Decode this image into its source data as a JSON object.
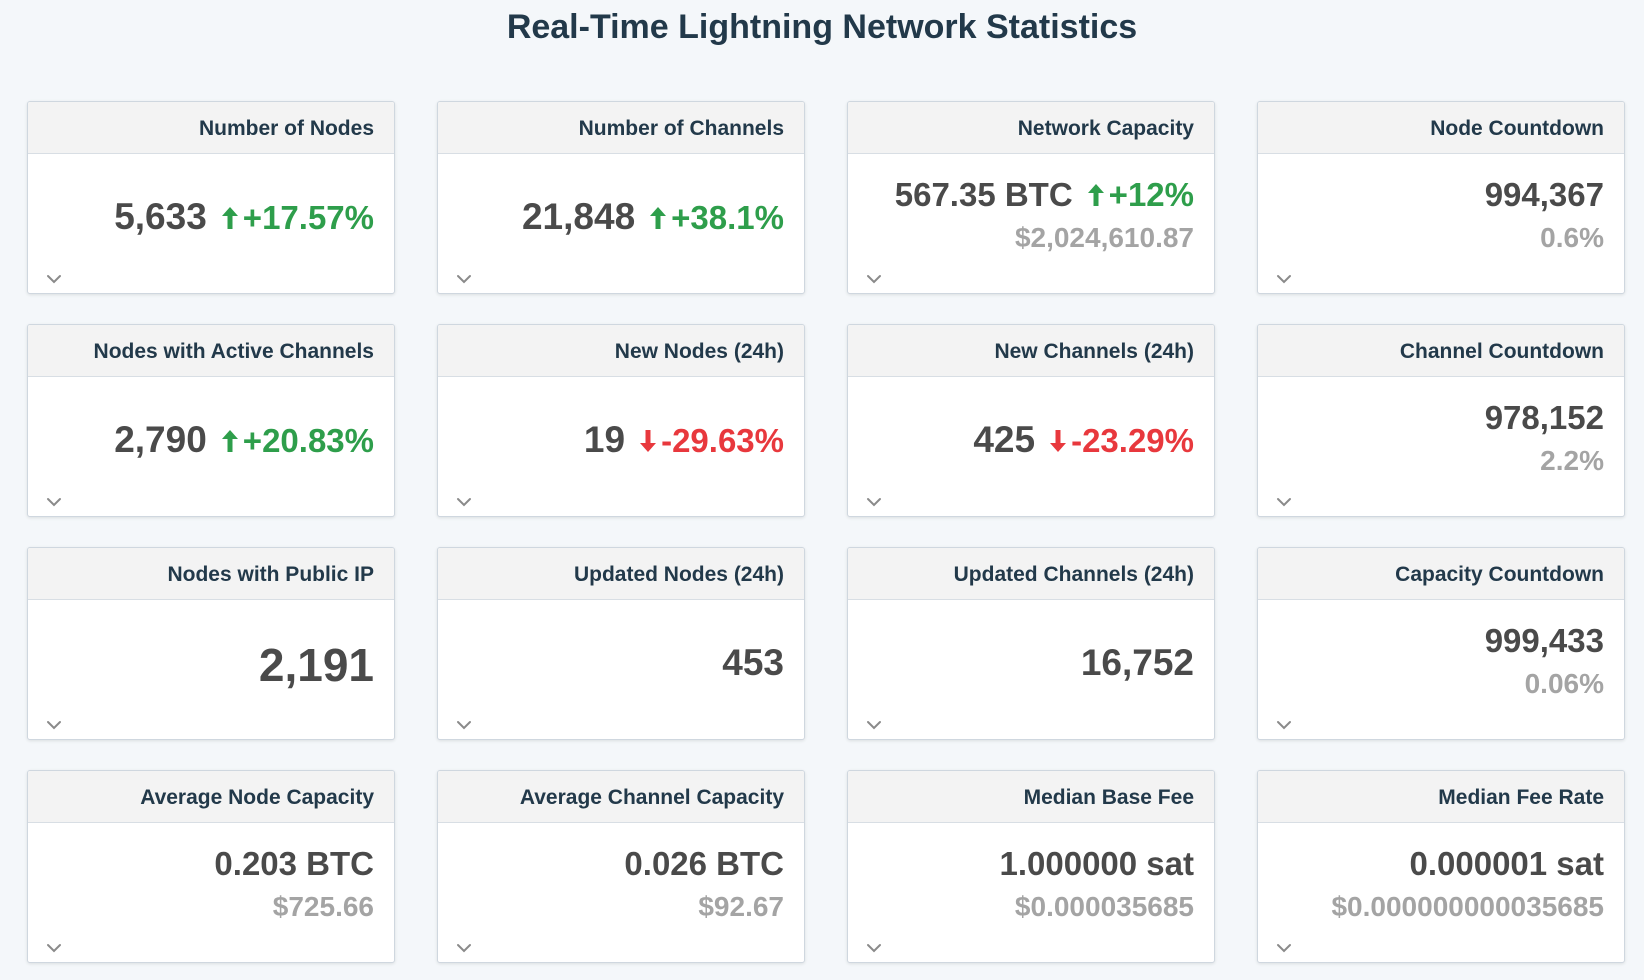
{
  "page": {
    "title": "Real-Time Lightning Network Statistics"
  },
  "colors": {
    "up": "#2e9e4b",
    "down": "#e8383d",
    "muted": "#a4a4a4",
    "heading": "#22394a"
  },
  "cards": [
    {
      "id": "number-of-nodes",
      "title": "Number of Nodes",
      "value": "5,633",
      "change": "+17.57%",
      "direction": "up"
    },
    {
      "id": "number-of-channels",
      "title": "Number of Channels",
      "value": "21,848",
      "change": "+38.1%",
      "direction": "up"
    },
    {
      "id": "network-capacity",
      "title": "Network Capacity",
      "value": "567.35 BTC",
      "change": "+12%",
      "direction": "up",
      "secondary": "$2,024,610.87"
    },
    {
      "id": "node-countdown",
      "title": "Node Countdown",
      "value": "994,367",
      "secondary": "0.6%"
    },
    {
      "id": "nodes-with-active-channels",
      "title": "Nodes with Active Channels",
      "value": "2,790",
      "change": "+20.83%",
      "direction": "up"
    },
    {
      "id": "new-nodes-24h",
      "title": "New Nodes (24h)",
      "value": "19",
      "change": "-29.63%",
      "direction": "down"
    },
    {
      "id": "new-channels-24h",
      "title": "New Channels (24h)",
      "value": "425",
      "change": "-23.29%",
      "direction": "down"
    },
    {
      "id": "channel-countdown",
      "title": "Channel Countdown",
      "value": "978,152",
      "secondary": "2.2%"
    },
    {
      "id": "nodes-with-public-ip",
      "title": "Nodes with Public IP",
      "value": "2,191",
      "emphasis": "large"
    },
    {
      "id": "updated-nodes-24h",
      "title": "Updated Nodes (24h)",
      "value": "453"
    },
    {
      "id": "updated-channels-24h",
      "title": "Updated Channels (24h)",
      "value": "16,752"
    },
    {
      "id": "capacity-countdown",
      "title": "Capacity Countdown",
      "value": "999,433",
      "secondary": "0.06%"
    },
    {
      "id": "average-node-capacity",
      "title": "Average Node Capacity",
      "value": "0.203 BTC",
      "secondary": "$725.66"
    },
    {
      "id": "average-channel-capacity",
      "title": "Average Channel Capacity",
      "value": "0.026 BTC",
      "secondary": "$92.67"
    },
    {
      "id": "median-base-fee",
      "title": "Median Base Fee",
      "value": "1.000000 sat",
      "secondary": "$0.000035685"
    },
    {
      "id": "median-fee-rate",
      "title": "Median Fee Rate",
      "value": "0.000001 sat",
      "secondary": "$0.000000000035685"
    }
  ]
}
